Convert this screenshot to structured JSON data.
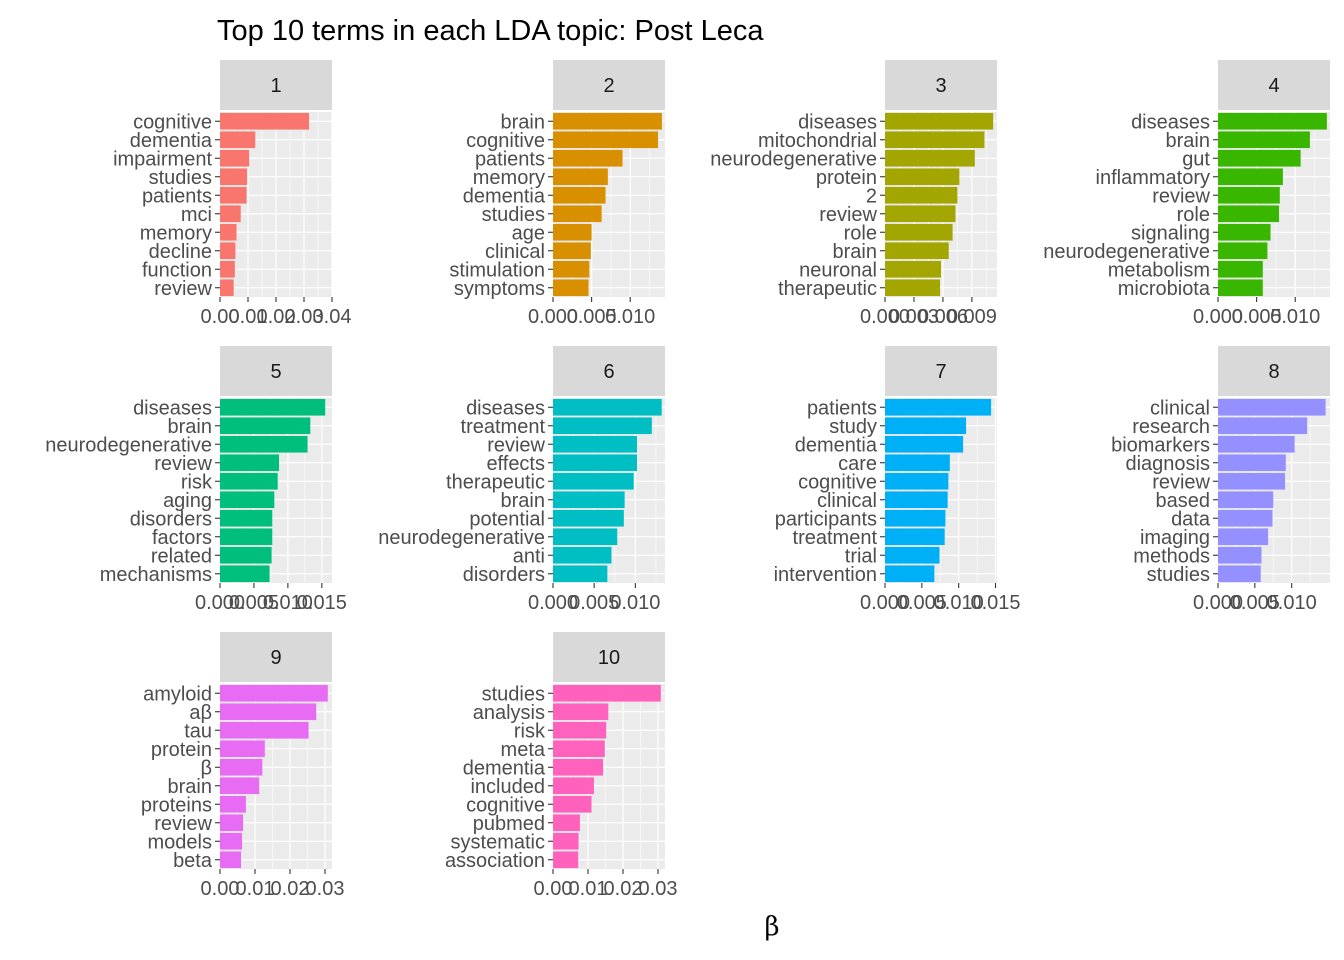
{
  "chart_data": {
    "type": "bar",
    "orientation": "horizontal",
    "title": "Top 10 terms in each LDA topic: Post Leca",
    "xlabel": "β",
    "ylabel": "",
    "grid": true,
    "legend": "none",
    "facets": [
      {
        "label": "1",
        "color": "#F8766D",
        "xlim": [
          0,
          0.04
        ],
        "ticks": [
          0,
          0.01,
          0.02,
          0.03,
          0.04
        ],
        "tick_labels": [
          "0.00",
          "0.01",
          "0.02",
          "0.03",
          "0.04"
        ],
        "terms": [
          "cognitive",
          "dementia",
          "impairment",
          "studies",
          "patients",
          "mci",
          "memory",
          "decline",
          "function",
          "review"
        ],
        "values": [
          0.0318,
          0.0126,
          0.0104,
          0.0097,
          0.0095,
          0.0074,
          0.0059,
          0.0055,
          0.0053,
          0.0049
        ]
      },
      {
        "label": "2",
        "color": "#D89000",
        "xlim": [
          0,
          0.0145
        ],
        "ticks": [
          0,
          0.005,
          0.01
        ],
        "tick_labels": [
          "0.000",
          "0.005",
          "0.010"
        ],
        "terms": [
          "brain",
          "cognitive",
          "patients",
          "memory",
          "dementia",
          "studies",
          "age",
          "clinical",
          "stimulation",
          "symptoms"
        ],
        "values": [
          0.0141,
          0.0136,
          0.009,
          0.0071,
          0.0068,
          0.0063,
          0.005,
          0.0049,
          0.0047,
          0.0046
        ]
      },
      {
        "label": "3",
        "color": "#A3A500",
        "xlim": [
          0,
          0.0116
        ],
        "ticks": [
          0,
          0.003,
          0.006,
          0.009
        ],
        "tick_labels": [
          "0.000",
          "0.003",
          "0.006",
          "0.009"
        ],
        "terms": [
          "diseases",
          "mitochondrial",
          "neurodegenerative",
          "protein",
          "2",
          "review",
          "role",
          "brain",
          "neuronal",
          "therapeutic"
        ],
        "values": [
          0.0112,
          0.0103,
          0.0093,
          0.0077,
          0.0075,
          0.0073,
          0.007,
          0.0066,
          0.0058,
          0.0057
        ]
      },
      {
        "label": "4",
        "color": "#39B600",
        "xlim": [
          0,
          0.0145
        ],
        "ticks": [
          0,
          0.005,
          0.01
        ],
        "tick_labels": [
          "0.000",
          "0.005",
          "0.010"
        ],
        "terms": [
          "diseases",
          "brain",
          "gut",
          "inflammatory",
          "review",
          "role",
          "signaling",
          "neurodegenerative",
          "metabolism",
          "microbiota"
        ],
        "values": [
          0.0141,
          0.0119,
          0.0107,
          0.0084,
          0.008,
          0.0079,
          0.0068,
          0.0064,
          0.0058,
          0.0058
        ]
      },
      {
        "label": "5",
        "color": "#00BF7D",
        "xlim": [
          0,
          0.0165
        ],
        "ticks": [
          0,
          0.005,
          0.01,
          0.015
        ],
        "tick_labels": [
          "0.000",
          "0.005",
          "0.010",
          "0.015"
        ],
        "terms": [
          "diseases",
          "brain",
          "neurodegenerative",
          "review",
          "risk",
          "aging",
          "disorders",
          "factors",
          "related",
          "mechanisms"
        ],
        "values": [
          0.0155,
          0.0133,
          0.0129,
          0.0087,
          0.0085,
          0.008,
          0.0077,
          0.0077,
          0.0076,
          0.0073
        ]
      },
      {
        "label": "6",
        "color": "#00BFC4",
        "xlim": [
          0,
          0.0136
        ],
        "ticks": [
          0,
          0.005,
          0.01
        ],
        "tick_labels": [
          "0.000",
          "0.005",
          "0.010"
        ],
        "terms": [
          "diseases",
          "treatment",
          "review",
          "effects",
          "therapeutic",
          "brain",
          "potential",
          "neurodegenerative",
          "anti",
          "disorders"
        ],
        "values": [
          0.0132,
          0.012,
          0.0102,
          0.0102,
          0.0098,
          0.0087,
          0.0086,
          0.0078,
          0.0071,
          0.0066
        ]
      },
      {
        "label": "7",
        "color": "#00B0F6",
        "xlim": [
          0,
          0.0152
        ],
        "ticks": [
          0,
          0.005,
          0.01,
          0.015
        ],
        "tick_labels": [
          "0.000",
          "0.005",
          "0.010",
          "0.015"
        ],
        "terms": [
          "patients",
          "study",
          "dementia",
          "care",
          "cognitive",
          "clinical",
          "participants",
          "treatment",
          "trial",
          "intervention"
        ],
        "values": [
          0.0144,
          0.011,
          0.0106,
          0.0088,
          0.0086,
          0.0085,
          0.0082,
          0.0081,
          0.0074,
          0.0067
        ]
      },
      {
        "label": "8",
        "color": "#9590FF",
        "xlim": [
          0,
          0.0152
        ],
        "ticks": [
          0,
          0.005,
          0.01
        ],
        "tick_labels": [
          "0.000",
          "0.005",
          "0.010"
        ],
        "terms": [
          "clinical",
          "research",
          "biomarkers",
          "diagnosis",
          "review",
          "based",
          "data",
          "imaging",
          "methods",
          "studies"
        ],
        "values": [
          0.0146,
          0.0121,
          0.0104,
          0.0092,
          0.0091,
          0.0075,
          0.0074,
          0.0068,
          0.0059,
          0.0058
        ]
      },
      {
        "label": "9",
        "color": "#E76BF3",
        "xlim": [
          0,
          0.032
        ],
        "ticks": [
          0,
          0.01,
          0.02,
          0.03
        ],
        "tick_labels": [
          "0.00",
          "0.01",
          "0.02",
          "0.03"
        ],
        "terms": [
          "amyloid",
          "aβ",
          "tau",
          "protein",
          "β",
          "brain",
          "proteins",
          "review",
          "models",
          "beta"
        ],
        "values": [
          0.0308,
          0.0275,
          0.0253,
          0.0128,
          0.0121,
          0.0112,
          0.0074,
          0.0066,
          0.0063,
          0.006
        ]
      },
      {
        "label": "10",
        "color": "#FF62BC",
        "xlim": [
          0,
          0.032
        ],
        "ticks": [
          0,
          0.01,
          0.02,
          0.03
        ],
        "tick_labels": [
          "0.00",
          "0.01",
          "0.02",
          "0.03"
        ],
        "terms": [
          "studies",
          "analysis",
          "risk",
          "meta",
          "dementia",
          "included",
          "cognitive",
          "pubmed",
          "systematic",
          "association"
        ],
        "values": [
          0.0308,
          0.0158,
          0.0152,
          0.0148,
          0.0143,
          0.0117,
          0.011,
          0.0077,
          0.0073,
          0.0072
        ]
      }
    ]
  }
}
